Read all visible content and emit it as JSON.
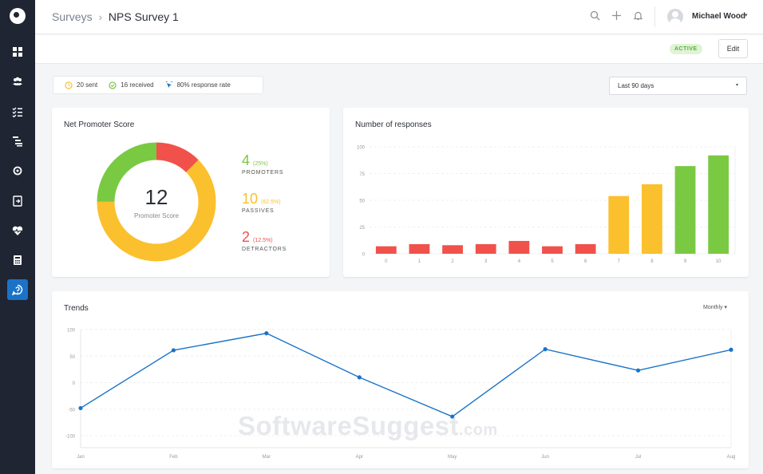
{
  "colors": {
    "sidebar": "#1f2533",
    "accent": "#1a73c8",
    "promoter": "#7ac943",
    "passive": "#fbc02d",
    "detractor": "#f0524b",
    "line": "#1a73c8"
  },
  "sidebar": {
    "items": [
      {
        "icon": "dashboard-icon"
      },
      {
        "icon": "users-icon"
      },
      {
        "icon": "checklist-icon"
      },
      {
        "icon": "hierarchy-icon"
      },
      {
        "icon": "sync-icon"
      },
      {
        "icon": "export-icon"
      },
      {
        "icon": "heartbeat-icon"
      },
      {
        "icon": "calculator-icon"
      },
      {
        "icon": "nps-icon",
        "active": true
      }
    ]
  },
  "header": {
    "breadcrumb_parent": "Surveys",
    "breadcrumb_sep": "›",
    "breadcrumb_current": "NPS Survey 1",
    "user_name": "Michael Wood",
    "user_caret": "▾"
  },
  "subbar": {
    "status": "ACTIVE",
    "edit_label": "Edit"
  },
  "stats": {
    "sent": "20 sent",
    "received": "16 received",
    "rate": "80% response rate"
  },
  "range_select": {
    "value": "Last 90 days",
    "caret": "▾"
  },
  "nps": {
    "title": "Net Promoter Score",
    "score": "12",
    "score_label": "Promoter Score",
    "promoters": {
      "count": "4",
      "pct": "(25%)",
      "label": "PROMOTERS",
      "share": 0.25
    },
    "passives": {
      "count": "10",
      "pct": "(62.5%)",
      "label": "PASSIVES",
      "share": 0.625
    },
    "detractors": {
      "count": "2",
      "pct": "(12.5%)",
      "label": "DETRACTORS",
      "share": 0.125
    }
  },
  "responses": {
    "title": "Number of responses"
  },
  "trends": {
    "title": "Trends",
    "period": "Monthly ▾"
  },
  "watermark": {
    "brand": "SoftwareSuggest",
    "tld": ".com"
  },
  "chart_data": [
    {
      "type": "bar",
      "title": "Number of responses",
      "categories": [
        "0",
        "1",
        "2",
        "3",
        "4",
        "5",
        "6",
        "7",
        "8",
        "9",
        "10"
      ],
      "values": [
        7,
        9,
        8,
        9,
        12,
        7,
        9,
        54,
        65,
        82,
        92
      ],
      "colors": [
        "#f0524b",
        "#f0524b",
        "#f0524b",
        "#f0524b",
        "#f0524b",
        "#f0524b",
        "#f0524b",
        "#fbc02d",
        "#fbc02d",
        "#7ac943",
        "#7ac943"
      ],
      "yticks": [
        "100",
        "75",
        "50",
        "25",
        "0"
      ],
      "ylim": [
        0,
        100
      ],
      "grid": true
    },
    {
      "type": "line",
      "title": "Trends",
      "x": [
        "Jan",
        "Feb",
        "Mar",
        "Apr",
        "May",
        "Jun",
        "Jul",
        "Aug"
      ],
      "values": [
        -48,
        61,
        93,
        10,
        -64,
        63,
        23,
        62
      ],
      "yticks": [
        "100",
        "50",
        "0",
        "-50",
        "-100"
      ],
      "ylim": [
        -100,
        100
      ],
      "grid": true
    }
  ]
}
